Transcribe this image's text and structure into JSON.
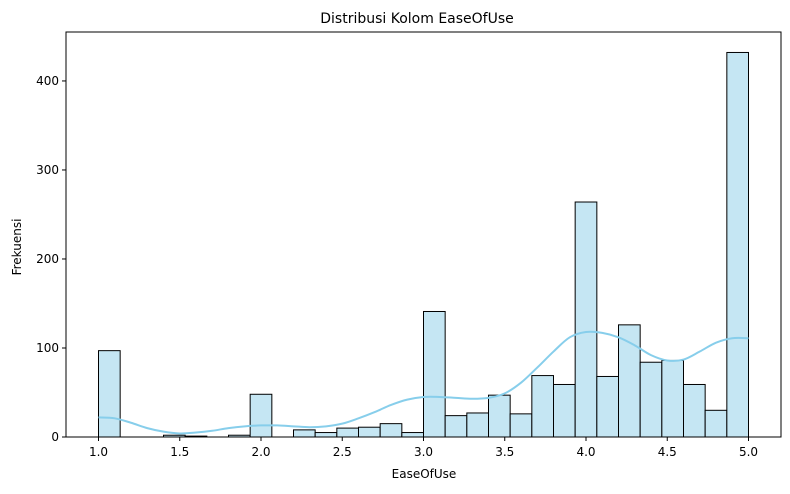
{
  "chart_data": {
    "type": "bar",
    "subtype": "histogram",
    "title": "Distribusi Kolom EaseOfUse",
    "xlabel": "EaseOfUse",
    "ylabel": "Frekuensi",
    "xlim": [
      0.8,
      5.2
    ],
    "ylim": [
      0,
      455
    ],
    "x_ticks": [
      "1.0",
      "1.5",
      "2.0",
      "2.5",
      "3.0",
      "3.5",
      "4.0",
      "4.5",
      "5.0"
    ],
    "y_ticks": [
      "0",
      "100",
      "200",
      "300",
      "400"
    ],
    "grid": false,
    "bin_width": 0.1333,
    "bins": [
      {
        "x0": 1.0,
        "x1": 1.1333,
        "value": 97
      },
      {
        "x0": 1.1333,
        "x1": 1.2667,
        "value": 0
      },
      {
        "x0": 1.2667,
        "x1": 1.4,
        "value": 0
      },
      {
        "x0": 1.4,
        "x1": 1.5333,
        "value": 2
      },
      {
        "x0": 1.5333,
        "x1": 1.6667,
        "value": 1
      },
      {
        "x0": 1.6667,
        "x1": 1.8,
        "value": 0
      },
      {
        "x0": 1.8,
        "x1": 1.9333,
        "value": 2
      },
      {
        "x0": 1.9333,
        "x1": 2.0667,
        "value": 48
      },
      {
        "x0": 2.0667,
        "x1": 2.2,
        "value": 0
      },
      {
        "x0": 2.2,
        "x1": 2.3333,
        "value": 8
      },
      {
        "x0": 2.3333,
        "x1": 2.4667,
        "value": 5
      },
      {
        "x0": 2.4667,
        "x1": 2.6,
        "value": 10
      },
      {
        "x0": 2.6,
        "x1": 2.7333,
        "value": 11
      },
      {
        "x0": 2.7333,
        "x1": 2.8667,
        "value": 15
      },
      {
        "x0": 2.8667,
        "x1": 3.0,
        "value": 5
      },
      {
        "x0": 3.0,
        "x1": 3.1333,
        "value": 141
      },
      {
        "x0": 3.1333,
        "x1": 3.2667,
        "value": 24
      },
      {
        "x0": 3.2667,
        "x1": 3.4,
        "value": 27
      },
      {
        "x0": 3.4,
        "x1": 3.5333,
        "value": 47
      },
      {
        "x0": 3.5333,
        "x1": 3.6667,
        "value": 26
      },
      {
        "x0": 3.6667,
        "x1": 3.8,
        "value": 69
      },
      {
        "x0": 3.8,
        "x1": 3.9333,
        "value": 59
      },
      {
        "x0": 3.9333,
        "x1": 4.0667,
        "value": 264
      },
      {
        "x0": 4.0667,
        "x1": 4.2,
        "value": 68
      },
      {
        "x0": 4.2,
        "x1": 4.3333,
        "value": 126
      },
      {
        "x0": 4.3333,
        "x1": 4.4667,
        "value": 84
      },
      {
        "x0": 4.4667,
        "x1": 4.6,
        "value": 86
      },
      {
        "x0": 4.6,
        "x1": 4.7333,
        "value": 59
      },
      {
        "x0": 4.7333,
        "x1": 4.8667,
        "value": 30
      },
      {
        "x0": 4.8667,
        "x1": 5.0,
        "value": 432
      }
    ],
    "kde": {
      "x": [
        1.0,
        1.1,
        1.2,
        1.3,
        1.4,
        1.5,
        1.6,
        1.7,
        1.8,
        1.9,
        2.0,
        2.1,
        2.2,
        2.3,
        2.4,
        2.5,
        2.6,
        2.7,
        2.8,
        2.9,
        3.0,
        3.1,
        3.2,
        3.3,
        3.4,
        3.5,
        3.6,
        3.7,
        3.8,
        3.9,
        4.0,
        4.1,
        4.2,
        4.3,
        4.4,
        4.5,
        4.6,
        4.7,
        4.8,
        4.9,
        5.0
      ],
      "y": [
        22,
        21,
        16,
        10,
        6,
        4,
        5,
        7,
        10,
        12,
        13,
        13,
        12,
        11,
        12,
        15,
        21,
        28,
        36,
        42,
        45,
        45,
        44,
        43,
        44,
        49,
        61,
        78,
        96,
        112,
        118,
        117,
        112,
        103,
        92,
        86,
        87,
        96,
        106,
        111,
        111
      ]
    },
    "colors": {
      "bar_fill": "#c5e6f3",
      "bar_stroke": "#000000",
      "kde_line": "#87ceeb"
    }
  }
}
